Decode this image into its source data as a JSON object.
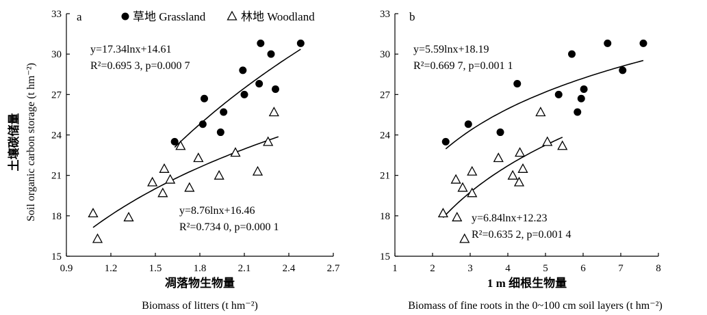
{
  "y_axis_label_cn": "土壤碳储量",
  "y_axis_label_en": "Soil organic carbon storage (t hm⁻²)",
  "legend": [
    {
      "symbol": "●",
      "label": "草地 Grassland"
    },
    {
      "symbol": "△",
      "label": "林地 Woodland"
    }
  ],
  "chart_data": [
    {
      "panel": "a",
      "type": "scatter",
      "xlabel_cn": "凋落物生物量",
      "xlabel_en": "Biomass of litters (t hm⁻²)",
      "xlim": [
        0.9,
        2.7
      ],
      "xticks": [
        "0.9",
        "1.2",
        "1.5",
        "1.8",
        "2.1",
        "2.4",
        "2.7"
      ],
      "ylim": [
        15,
        33
      ],
      "yticks": [
        "15",
        "18",
        "21",
        "24",
        "27",
        "30",
        "33"
      ],
      "series": [
        {
          "name": "草地 Grassland",
          "marker": "filled-circle",
          "x": [
            1.63,
            1.82,
            1.83,
            1.94,
            1.96,
            2.09,
            2.1,
            2.2,
            2.21,
            2.28,
            2.31,
            2.48
          ],
          "y": [
            23.5,
            24.8,
            26.7,
            24.2,
            25.7,
            28.8,
            27.0,
            27.8,
            30.8,
            30.0,
            27.4,
            30.8
          ],
          "fit": {
            "a": 17.34,
            "b": 14.61,
            "x_range": [
              1.63,
              2.48
            ]
          },
          "equation": "y=17.34lnx+14.61",
          "stats": "R²=0.695 3, p=0.000 7"
        },
        {
          "name": "林地 Woodland",
          "marker": "open-triangle",
          "x": [
            1.08,
            1.11,
            1.32,
            1.48,
            1.55,
            1.56,
            1.6,
            1.67,
            1.73,
            1.79,
            1.93,
            2.04,
            2.19,
            2.26,
            2.3
          ],
          "y": [
            18.2,
            16.3,
            17.9,
            20.5,
            19.7,
            21.5,
            20.7,
            23.2,
            20.1,
            22.3,
            21.0,
            22.7,
            21.3,
            23.5,
            25.7
          ],
          "fit": {
            "a": 8.76,
            "b": 16.46,
            "x_range": [
              1.08,
              2.33
            ]
          },
          "equation": "y=8.76lnx+16.46",
          "stats": "R²=0.734 0, p=0.000 1"
        }
      ]
    },
    {
      "panel": "b",
      "type": "scatter",
      "xlabel_cn": "1 m 细根生物量",
      "xlabel_en": "Biomass of fine roots in the 0~100 cm soil layers (t hm⁻²)",
      "xlim": [
        1,
        8
      ],
      "xticks": [
        "1",
        "2",
        "3",
        "4",
        "5",
        "6",
        "7",
        "8"
      ],
      "ylim": [
        15,
        33
      ],
      "yticks": [
        "15",
        "18",
        "21",
        "24",
        "27",
        "30",
        "33"
      ],
      "series": [
        {
          "name": "草地 Grassland",
          "marker": "filled-circle",
          "x": [
            2.35,
            2.95,
            3.8,
            4.25,
            5.7,
            5.35,
            5.85,
            5.95,
            6.02,
            6.65,
            7.05,
            7.6
          ],
          "y": [
            23.5,
            24.8,
            24.2,
            27.8,
            30.0,
            27.0,
            25.7,
            26.7,
            27.4,
            30.8,
            28.8,
            30.8
          ],
          "fit": {
            "a": 5.59,
            "b": 18.19,
            "x_range": [
              2.35,
              7.6
            ]
          },
          "equation": "y=5.59lnx+18.19",
          "stats": "R²=0.669 7, p=0.001 1"
        },
        {
          "name": "林地 Woodland",
          "marker": "open-triangle",
          "x": [
            2.28,
            2.62,
            2.65,
            2.8,
            2.85,
            3.05,
            3.05,
            3.75,
            4.13,
            4.3,
            4.32,
            4.4,
            4.87,
            5.05,
            5.45
          ],
          "y": [
            18.2,
            20.7,
            17.9,
            20.1,
            16.3,
            21.3,
            19.7,
            22.3,
            21.0,
            20.5,
            22.7,
            21.5,
            25.7,
            23.5,
            23.2
          ],
          "fit": {
            "a": 6.84,
            "b": 12.23,
            "x_range": [
              2.28,
              5.45
            ]
          },
          "equation": "y=6.84lnx+12.23",
          "stats": "R²=0.635 2, p=0.001 4"
        }
      ]
    }
  ]
}
